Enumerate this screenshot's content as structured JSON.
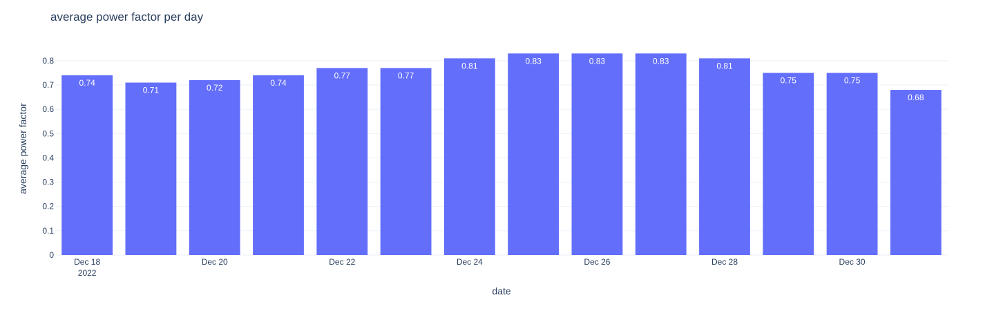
{
  "chart_data": {
    "type": "bar",
    "title": "average power factor per day",
    "xlabel": "date",
    "ylabel": "average power factor",
    "x": [
      "2022-12-18",
      "2022-12-19",
      "2022-12-20",
      "2022-12-21",
      "2022-12-22",
      "2022-12-23",
      "2022-12-24",
      "2022-12-25",
      "2022-12-26",
      "2022-12-27",
      "2022-12-28",
      "2022-12-29",
      "2022-12-30",
      "2022-12-31"
    ],
    "values": [
      0.74,
      0.71,
      0.72,
      0.74,
      0.77,
      0.77,
      0.81,
      0.83,
      0.83,
      0.83,
      0.81,
      0.75,
      0.75,
      0.68
    ],
    "value_labels": [
      "0.74",
      "0.71",
      "0.72",
      "0.74",
      "0.77",
      "0.77",
      "0.81",
      "0.83",
      "0.83",
      "0.83",
      "0.81",
      "0.75",
      "0.75",
      "0.68"
    ],
    "x_ticks": [
      {
        "x": "2022-12-18",
        "label": "Dec 18",
        "sublabel": "2022"
      },
      {
        "x": "2022-12-20",
        "label": "Dec 20"
      },
      {
        "x": "2022-12-22",
        "label": "Dec 22"
      },
      {
        "x": "2022-12-24",
        "label": "Dec 24"
      },
      {
        "x": "2022-12-26",
        "label": "Dec 26"
      },
      {
        "x": "2022-12-28",
        "label": "Dec 28"
      },
      {
        "x": "2022-12-30",
        "label": "Dec 30"
      }
    ],
    "y_ticks": [
      0,
      0.1,
      0.2,
      0.3,
      0.4,
      0.5,
      0.6,
      0.7,
      0.8
    ],
    "y_tick_labels": [
      "0",
      "0.1",
      "0.2",
      "0.3",
      "0.4",
      "0.5",
      "0.6",
      "0.7",
      "0.8"
    ],
    "ylim": [
      0,
      0.8737
    ],
    "grid": true,
    "legend": false,
    "bar_color": "#636efa",
    "grid_color": "#ebf0f8",
    "text_color": "#2a3f5f"
  }
}
